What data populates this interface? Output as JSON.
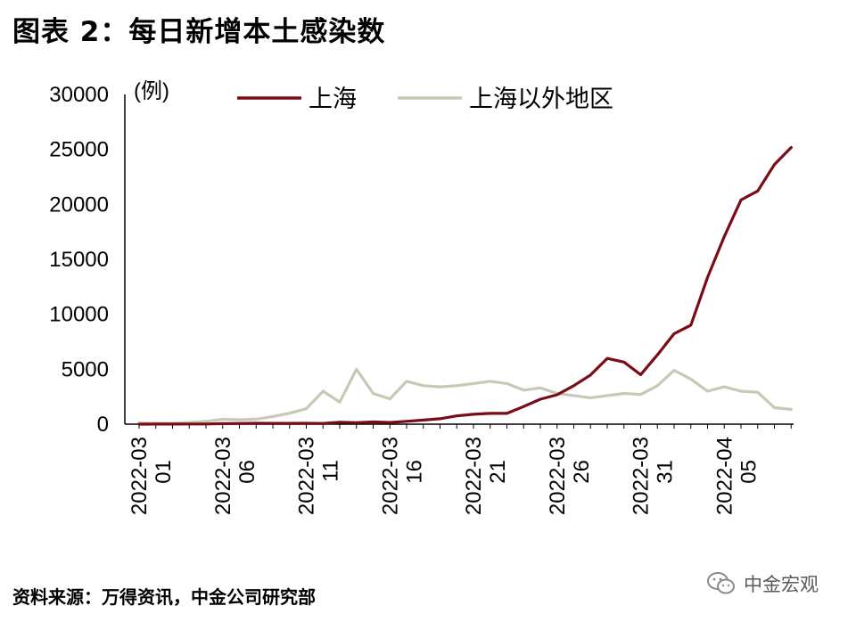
{
  "title": "图表 2：每日新增本土感染数",
  "source": "资料来源：万得资讯，中金公司研究部",
  "watermark": {
    "text": "中金宏观",
    "icon": "wechat-icon"
  },
  "chart_data": {
    "type": "line",
    "y_unit_label": "(例)",
    "ylim": [
      0,
      30000
    ],
    "y_ticks": [
      0,
      5000,
      10000,
      15000,
      20000,
      25000,
      30000
    ],
    "x_tick_labels": [
      {
        "date": "2022-03-01",
        "line1": "2022-03",
        "line2": "01"
      },
      {
        "date": "2022-03-06",
        "line1": "2022-03",
        "line2": "06"
      },
      {
        "date": "2022-03-11",
        "line1": "2022-03",
        "line2": "11"
      },
      {
        "date": "2022-03-16",
        "line1": "2022-03",
        "line2": "16"
      },
      {
        "date": "2022-03-21",
        "line1": "2022-03",
        "line2": "21"
      },
      {
        "date": "2022-03-26",
        "line1": "2022-03",
        "line2": "26"
      },
      {
        "date": "2022-03-31",
        "line1": "2022-03",
        "line2": "31"
      },
      {
        "date": "2022-04-05",
        "line1": "2022-04",
        "line2": "05"
      }
    ],
    "x": [
      "2022-03-01",
      "2022-03-02",
      "2022-03-03",
      "2022-03-04",
      "2022-03-05",
      "2022-03-06",
      "2022-03-07",
      "2022-03-08",
      "2022-03-09",
      "2022-03-10",
      "2022-03-11",
      "2022-03-12",
      "2022-03-13",
      "2022-03-14",
      "2022-03-15",
      "2022-03-16",
      "2022-03-17",
      "2022-03-18",
      "2022-03-19",
      "2022-03-20",
      "2022-03-21",
      "2022-03-22",
      "2022-03-23",
      "2022-03-24",
      "2022-03-25",
      "2022-03-26",
      "2022-03-27",
      "2022-03-28",
      "2022-03-29",
      "2022-03-30",
      "2022-03-31",
      "2022-04-01",
      "2022-04-02",
      "2022-04-03",
      "2022-04-04",
      "2022-04-05",
      "2022-04-06",
      "2022-04-07",
      "2022-04-08",
      "2022-04-09"
    ],
    "series": [
      {
        "name": "上海",
        "color": "#7a0c17",
        "values": [
          2,
          8,
          5,
          16,
          19,
          50,
          62,
          79,
          76,
          75,
          83,
          65,
          169,
          139,
          202,
          158,
          260,
          374,
          492,
          758,
          896,
          981,
          983,
          1609,
          2269,
          2676,
          3500,
          4477,
          5982,
          5653,
          4502,
          6311,
          8226,
          9006,
          13354,
          17077,
          20398,
          21222,
          23624,
          25173
        ]
      },
      {
        "name": "上海以外地区",
        "color": "#c8c8b4",
        "values": [
          100,
          80,
          70,
          150,
          250,
          450,
          400,
          450,
          700,
          1000,
          1400,
          3000,
          2000,
          5000,
          2800,
          2300,
          3900,
          3500,
          3400,
          3500,
          3700,
          3900,
          3700,
          3100,
          3300,
          2800,
          2600,
          2400,
          2600,
          2800,
          2700,
          3500,
          4900,
          4100,
          3000,
          3400,
          3000,
          2900,
          1500,
          1350
        ]
      }
    ],
    "grid": false,
    "legend_position": "top"
  }
}
